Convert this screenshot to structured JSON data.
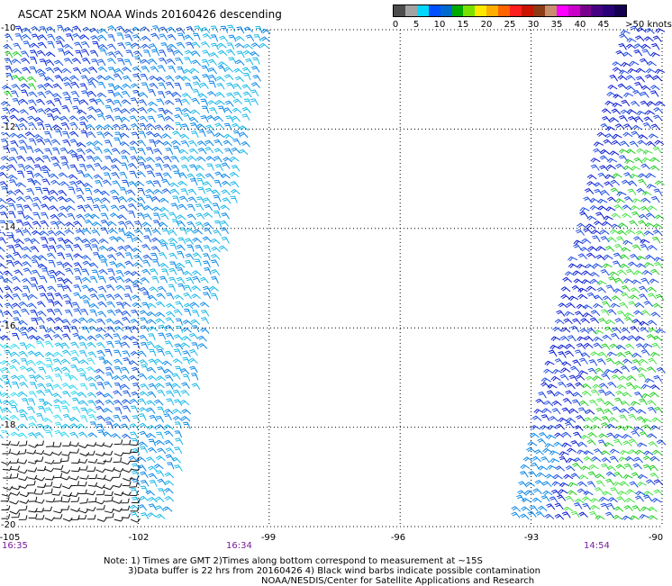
{
  "title": "ASCAT 25KM NOAA Winds 20160426 descending",
  "colorbar": {
    "colors": [
      "#4d4d4d",
      "#a3a3a3",
      "#00d7ff",
      "#0050ff",
      "#006ad0",
      "#00aa00",
      "#7ae000",
      "#ffe800",
      "#ffae00",
      "#ff6400",
      "#ff1e1e",
      "#c81400",
      "#8c3c14",
      "#c88c6e",
      "#ff00ff",
      "#c800c8",
      "#78008c",
      "#460082",
      "#2a0078",
      "#140050"
    ],
    "labels": [
      "0",
      "5",
      "10",
      "15",
      "20",
      "25",
      "30",
      "35",
      "40",
      "45",
      ">50 knots"
    ]
  },
  "map": {
    "lat_labels": [
      "-10",
      "-12",
      "-14",
      "-16",
      "-18",
      "-20"
    ],
    "lon_labels": [
      "-105",
      "-102",
      "-99",
      "-96",
      "-93",
      "-90"
    ],
    "lat_range": [
      -20,
      -10
    ],
    "lon_range": [
      -105,
      -90
    ]
  },
  "times": [
    "16:35",
    "16:34",
    "14:54"
  ],
  "notes": [
    "Note: 1) Times are GMT 2)Times along bottom correspond to measurement at ~15S",
    "3)Data buffer is 22 hrs from 20160426 4) Black wind barbs indicate possible contamination",
    "NOAA/NESDIS/Center for Satellite Applications and Research"
  ],
  "swaths": [
    {
      "name": "west-swath",
      "colors": [
        "#0a2ad8",
        "#1a58e0",
        "#0c88e8",
        "#18b8e8",
        "#30d8f0",
        "#111111"
      ]
    },
    {
      "name": "east-swath",
      "colors": [
        "#0a1ad0",
        "#1c4ae0",
        "#22cc22",
        "#44e044",
        "#0c88e8"
      ]
    }
  ]
}
